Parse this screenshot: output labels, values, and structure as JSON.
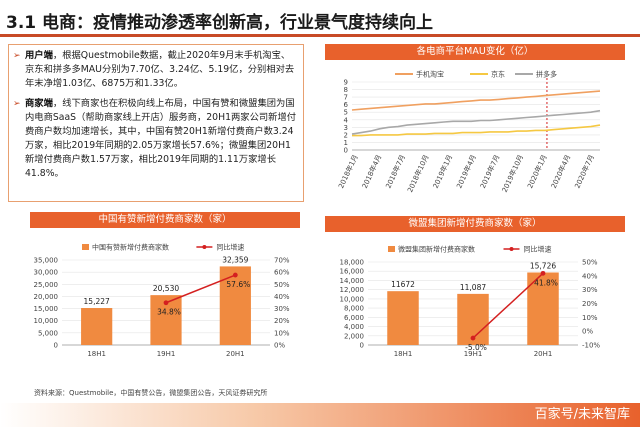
{
  "page": {
    "title": "3.1 电商：疫情推动渗透率创新高，行业景气度持续向上",
    "source": "资料来源：Questmobile，中国有赞公告，微盟集团公告，天风证券研究所",
    "watermark": "百家号/未来智库"
  },
  "text": {
    "p1_head": "用户端",
    "p1_body": "，根据Questmobile数据，截止2020年9月末手机淘宝、京东和拼多多MAU分别为7.70亿、3.24亿、5.19亿，分别相对去年末净增1.03亿、6875万和1.33亿。",
    "p2_head": "商家端",
    "p2_body": "，线下商家也在积极向线上布局，中国有赞和微盟集团为国内电商SaaS（帮助商家线上开店）服务商，20H1两家公司新增付费商户数均加速增长，其中，中国有赞20H1新增付费商户数3.24万家，相比2019年同期的2.05万家增长57.6%；微盟集团20H1新增付费商户数1.57万家，相比2019年同期的1.11万家增长41.8%。",
    "bullet": "➢"
  },
  "chart_data": [
    {
      "type": "line",
      "title": "各电商平台MAU变化（亿）",
      "x_ticks": [
        "2018年1月",
        "2018年4月",
        "2018年7月",
        "2018年10月",
        "2019年1月",
        "2019年4月",
        "2019年7月",
        "2019年10月",
        "2020年1月",
        "2020年4月",
        "2020年7月"
      ],
      "ylim": [
        0,
        9
      ],
      "y_ticks": [
        0,
        1,
        2,
        3,
        4,
        5,
        6,
        7,
        8,
        9
      ],
      "annotation": "2020年1月",
      "series": [
        {
          "name": "手机淘宝",
          "color": "#f0a060",
          "values": [
            5.3,
            5.4,
            5.5,
            5.6,
            5.7,
            5.8,
            5.9,
            6.0,
            6.1,
            6.1,
            6.2,
            6.3,
            6.4,
            6.5,
            6.6,
            6.6,
            6.7,
            6.8,
            6.9,
            7.0,
            7.1,
            7.2,
            7.3,
            7.4,
            7.5,
            7.6,
            7.7,
            7.8
          ]
        },
        {
          "name": "京东",
          "color": "#f5c842",
          "values": [
            1.9,
            1.9,
            2.0,
            2.0,
            2.0,
            2.0,
            2.1,
            2.1,
            2.1,
            2.2,
            2.2,
            2.2,
            2.3,
            2.3,
            2.3,
            2.4,
            2.4,
            2.4,
            2.5,
            2.5,
            2.6,
            2.6,
            2.7,
            2.8,
            2.9,
            3.0,
            3.1,
            3.3
          ]
        },
        {
          "name": "拼多多",
          "color": "#a8a8a8",
          "values": [
            2.1,
            2.3,
            2.5,
            2.8,
            3.0,
            3.1,
            3.3,
            3.4,
            3.5,
            3.6,
            3.7,
            3.8,
            3.8,
            3.8,
            3.9,
            3.9,
            4.0,
            4.1,
            4.2,
            4.3,
            4.4,
            4.5,
            4.6,
            4.7,
            4.8,
            4.9,
            5.0,
            5.2
          ]
        }
      ]
    },
    {
      "type": "bar",
      "title": "中国有赞新增付费商家数（家）",
      "categories": [
        "18H1",
        "19H1",
        "20H1"
      ],
      "ylim": [
        0,
        35000
      ],
      "y_ticks": [
        0,
        5000,
        10000,
        15000,
        20000,
        25000,
        30000,
        35000
      ],
      "y2lim": [
        0,
        70
      ],
      "y2_ticks": [
        0,
        10,
        20,
        30,
        40,
        50,
        60,
        70
      ],
      "series": [
        {
          "name": "中国有赞新增付费商家数",
          "kind": "bar",
          "color": "#f08a40",
          "values": [
            15227,
            20530,
            32359
          ],
          "labels": [
            "15,227",
            "20,530",
            "32,359"
          ]
        },
        {
          "name": "同比增速",
          "kind": "line",
          "axis": "right",
          "color": "#d42020",
          "values": [
            null,
            34.8,
            57.6
          ],
          "labels": [
            "",
            "34.8%",
            "57.6%"
          ]
        }
      ]
    },
    {
      "type": "bar",
      "title": "微盟集团新增付费商家数（家）",
      "categories": [
        "18H1",
        "19H1",
        "20H1"
      ],
      "ylim": [
        0,
        18000
      ],
      "y_ticks": [
        0,
        2000,
        4000,
        6000,
        8000,
        10000,
        12000,
        14000,
        16000,
        18000
      ],
      "y2lim": [
        -10,
        50
      ],
      "y2_ticks": [
        -10,
        0,
        10,
        20,
        30,
        40,
        50
      ],
      "series": [
        {
          "name": "微盟集团新增付费商家数",
          "kind": "bar",
          "color": "#f08a40",
          "values": [
            11672,
            11087,
            15726
          ],
          "labels": [
            "11672",
            "11,087",
            "15,726"
          ]
        },
        {
          "name": "同比增速",
          "kind": "line",
          "axis": "right",
          "color": "#d42020",
          "values": [
            null,
            -5.0,
            41.8
          ],
          "labels": [
            "",
            "-5.0%",
            "41.8%"
          ]
        }
      ]
    }
  ]
}
